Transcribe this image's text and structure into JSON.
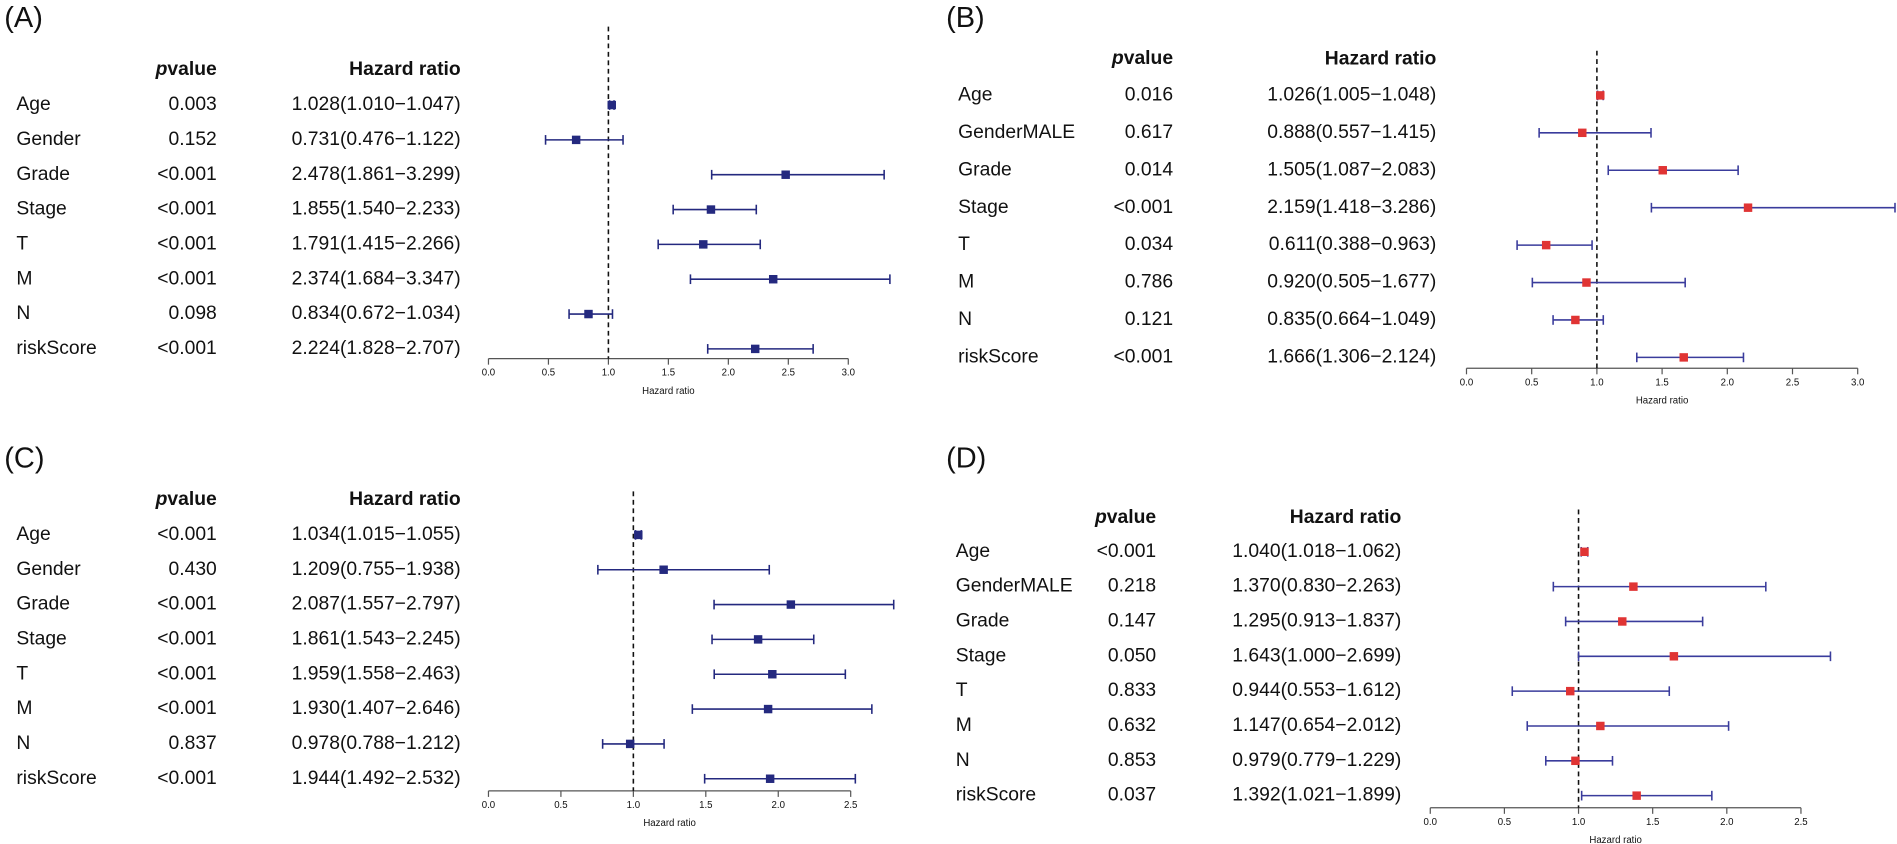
{
  "chart_data": [
    {
      "type": "forest",
      "panel": "(A)",
      "pvalue_header": [
        "p",
        "value"
      ],
      "hr_header": "Hazard ratio",
      "x_label": "Hazard ratio",
      "xlim": [
        0,
        3.0
      ],
      "xticks": [
        {
          "value": 0,
          "label": "0.0"
        },
        {
          "value": 0.5,
          "label": "0.5"
        },
        {
          "value": 1,
          "label": "1.0"
        },
        {
          "value": 1.5,
          "label": "1.5"
        },
        {
          "value": 2,
          "label": "2.0"
        },
        {
          "value": 2.5,
          "label": "2.5"
        },
        {
          "value": 3,
          "label": "3.0"
        }
      ],
      "reference": 1,
      "point_color": "#24297f",
      "line_color": "#24297f",
      "rows": [
        {
          "name": "Age",
          "pvalue": "0.003",
          "hr_label": "1.028(1.010−1.047)",
          "hr": 1.028,
          "lower": 1.01,
          "upper": 1.047
        },
        {
          "name": "Gender",
          "pvalue": "0.152",
          "hr_label": "0.731(0.476−1.122)",
          "hr": 0.731,
          "lower": 0.476,
          "upper": 1.122
        },
        {
          "name": "Grade",
          "pvalue": "<0.001",
          "hr_label": "2.478(1.861−3.299)",
          "hr": 2.478,
          "lower": 1.861,
          "upper": 3.299
        },
        {
          "name": "Stage",
          "pvalue": "<0.001",
          "hr_label": "1.855(1.540−2.233)",
          "hr": 1.855,
          "lower": 1.54,
          "upper": 2.233
        },
        {
          "name": "T",
          "pvalue": "<0.001",
          "hr_label": "1.791(1.415−2.266)",
          "hr": 1.791,
          "lower": 1.415,
          "upper": 2.266
        },
        {
          "name": "M",
          "pvalue": "<0.001",
          "hr_label": "2.374(1.684−3.347)",
          "hr": 2.374,
          "lower": 1.684,
          "upper": 3.347
        },
        {
          "name": "N",
          "pvalue": "0.098",
          "hr_label": "0.834(0.672−1.034)",
          "hr": 0.834,
          "lower": 0.672,
          "upper": 1.034
        },
        {
          "name": "riskScore",
          "pvalue": "<0.001",
          "hr_label": "2.224(1.828−2.707)",
          "hr": 2.224,
          "lower": 1.828,
          "upper": 2.707
        }
      ]
    },
    {
      "type": "forest",
      "panel": "(B)",
      "pvalue_header": [
        "p",
        "value"
      ],
      "hr_header": "Hazard ratio",
      "x_label": "Hazard ratio",
      "xlim": [
        0,
        3.0
      ],
      "xticks": [
        {
          "value": 0,
          "label": "0.0"
        },
        {
          "value": 0.5,
          "label": "0.5"
        },
        {
          "value": 1,
          "label": "1.0"
        },
        {
          "value": 1.5,
          "label": "1.5"
        },
        {
          "value": 2,
          "label": "2.0"
        },
        {
          "value": 2.5,
          "label": "2.5"
        },
        {
          "value": 3,
          "label": "3.0"
        }
      ],
      "reference": 1,
      "point_color": "#e03434",
      "line_color": "#3a3c9c",
      "rows": [
        {
          "name": "Age",
          "pvalue": "0.016",
          "hr_label": "1.026(1.005−1.048)",
          "hr": 1.026,
          "lower": 1.005,
          "upper": 1.048
        },
        {
          "name": "GenderMALE",
          "pvalue": "0.617",
          "hr_label": "0.888(0.557−1.415)",
          "hr": 0.888,
          "lower": 0.557,
          "upper": 1.415
        },
        {
          "name": "Grade",
          "pvalue": "0.014",
          "hr_label": "1.505(1.087−2.083)",
          "hr": 1.505,
          "lower": 1.087,
          "upper": 2.083
        },
        {
          "name": "Stage",
          "pvalue": "<0.001",
          "hr_label": "2.159(1.418−3.286)",
          "hr": 2.159,
          "lower": 1.418,
          "upper": 3.286
        },
        {
          "name": "T",
          "pvalue": "0.034",
          "hr_label": "0.611(0.388−0.963)",
          "hr": 0.611,
          "lower": 0.388,
          "upper": 0.963
        },
        {
          "name": "M",
          "pvalue": "0.786",
          "hr_label": "0.920(0.505−1.677)",
          "hr": 0.92,
          "lower": 0.505,
          "upper": 1.677
        },
        {
          "name": "N",
          "pvalue": "0.121",
          "hr_label": "0.835(0.664−1.049)",
          "hr": 0.835,
          "lower": 0.664,
          "upper": 1.049
        },
        {
          "name": "riskScore",
          "pvalue": "<0.001",
          "hr_label": "1.666(1.306−2.124)",
          "hr": 1.666,
          "lower": 1.306,
          "upper": 2.124
        }
      ]
    },
    {
      "type": "forest",
      "panel": "(C)",
      "pvalue_header": [
        "p",
        "value"
      ],
      "hr_header": "Hazard ratio",
      "x_label": "Hazard ratio",
      "xlim": [
        0,
        2.5
      ],
      "xticks": [
        {
          "value": 0,
          "label": "0.0"
        },
        {
          "value": 0.5,
          "label": "0.5"
        },
        {
          "value": 1,
          "label": "1.0"
        },
        {
          "value": 1.5,
          "label": "1.5"
        },
        {
          "value": 2,
          "label": "2.0"
        },
        {
          "value": 2.5,
          "label": "2.5"
        }
      ],
      "reference": 1,
      "point_color": "#24297f",
      "line_color": "#24297f",
      "rows": [
        {
          "name": "Age",
          "pvalue": "<0.001",
          "hr_label": "1.034(1.015−1.055)",
          "hr": 1.034,
          "lower": 1.015,
          "upper": 1.055
        },
        {
          "name": "Gender",
          "pvalue": "0.430",
          "hr_label": "1.209(0.755−1.938)",
          "hr": 1.209,
          "lower": 0.755,
          "upper": 1.938
        },
        {
          "name": "Grade",
          "pvalue": "<0.001",
          "hr_label": "2.087(1.557−2.797)",
          "hr": 2.087,
          "lower": 1.557,
          "upper": 2.797
        },
        {
          "name": "Stage",
          "pvalue": "<0.001",
          "hr_label": "1.861(1.543−2.245)",
          "hr": 1.861,
          "lower": 1.543,
          "upper": 2.245
        },
        {
          "name": "T",
          "pvalue": "<0.001",
          "hr_label": "1.959(1.558−2.463)",
          "hr": 1.959,
          "lower": 1.558,
          "upper": 2.463
        },
        {
          "name": "M",
          "pvalue": "<0.001",
          "hr_label": "1.930(1.407−2.646)",
          "hr": 1.93,
          "lower": 1.407,
          "upper": 2.646
        },
        {
          "name": "N",
          "pvalue": "0.837",
          "hr_label": "0.978(0.788−1.212)",
          "hr": 0.978,
          "lower": 0.788,
          "upper": 1.212
        },
        {
          "name": "riskScore",
          "pvalue": "<0.001",
          "hr_label": "1.944(1.492−2.532)",
          "hr": 1.944,
          "lower": 1.492,
          "upper": 2.532
        }
      ]
    },
    {
      "type": "forest",
      "panel": "(D)",
      "pvalue_header": [
        "p",
        "value"
      ],
      "hr_header": "Hazard ratio",
      "x_label": "Hazard ratio",
      "xlim": [
        0,
        2.5
      ],
      "xticks": [
        {
          "value": 0,
          "label": "0.0"
        },
        {
          "value": 0.5,
          "label": "0.5"
        },
        {
          "value": 1,
          "label": "1.0"
        },
        {
          "value": 1.5,
          "label": "1.5"
        },
        {
          "value": 2,
          "label": "2.0"
        },
        {
          "value": 2.5,
          "label": "2.5"
        }
      ],
      "reference": 1,
      "point_color": "#e03434",
      "line_color": "#3a3c9c",
      "rows": [
        {
          "name": "Age",
          "pvalue": "<0.001",
          "hr_label": "1.040(1.018−1.062)",
          "hr": 1.04,
          "lower": 1.018,
          "upper": 1.062
        },
        {
          "name": "GenderMALE",
          "pvalue": "0.218",
          "hr_label": "1.370(0.830−2.263)",
          "hr": 1.37,
          "lower": 0.83,
          "upper": 2.263
        },
        {
          "name": "Grade",
          "pvalue": "0.147",
          "hr_label": "1.295(0.913−1.837)",
          "hr": 1.295,
          "lower": 0.913,
          "upper": 1.837
        },
        {
          "name": "Stage",
          "pvalue": "0.050",
          "hr_label": "1.643(1.000−2.699)",
          "hr": 1.643,
          "lower": 1.0,
          "upper": 2.699
        },
        {
          "name": "T",
          "pvalue": "0.833",
          "hr_label": "0.944(0.553−1.612)",
          "hr": 0.944,
          "lower": 0.553,
          "upper": 1.612
        },
        {
          "name": "M",
          "pvalue": "0.632",
          "hr_label": "1.147(0.654−2.012)",
          "hr": 1.147,
          "lower": 0.654,
          "upper": 2.012
        },
        {
          "name": "N",
          "pvalue": "0.853",
          "hr_label": "0.979(0.779−1.229)",
          "hr": 0.979,
          "lower": 0.779,
          "upper": 1.229
        },
        {
          "name": "riskScore",
          "pvalue": "0.037",
          "hr_label": "1.392(1.021−1.899)",
          "hr": 1.392,
          "lower": 1.021,
          "upper": 1.899
        }
      ]
    }
  ]
}
